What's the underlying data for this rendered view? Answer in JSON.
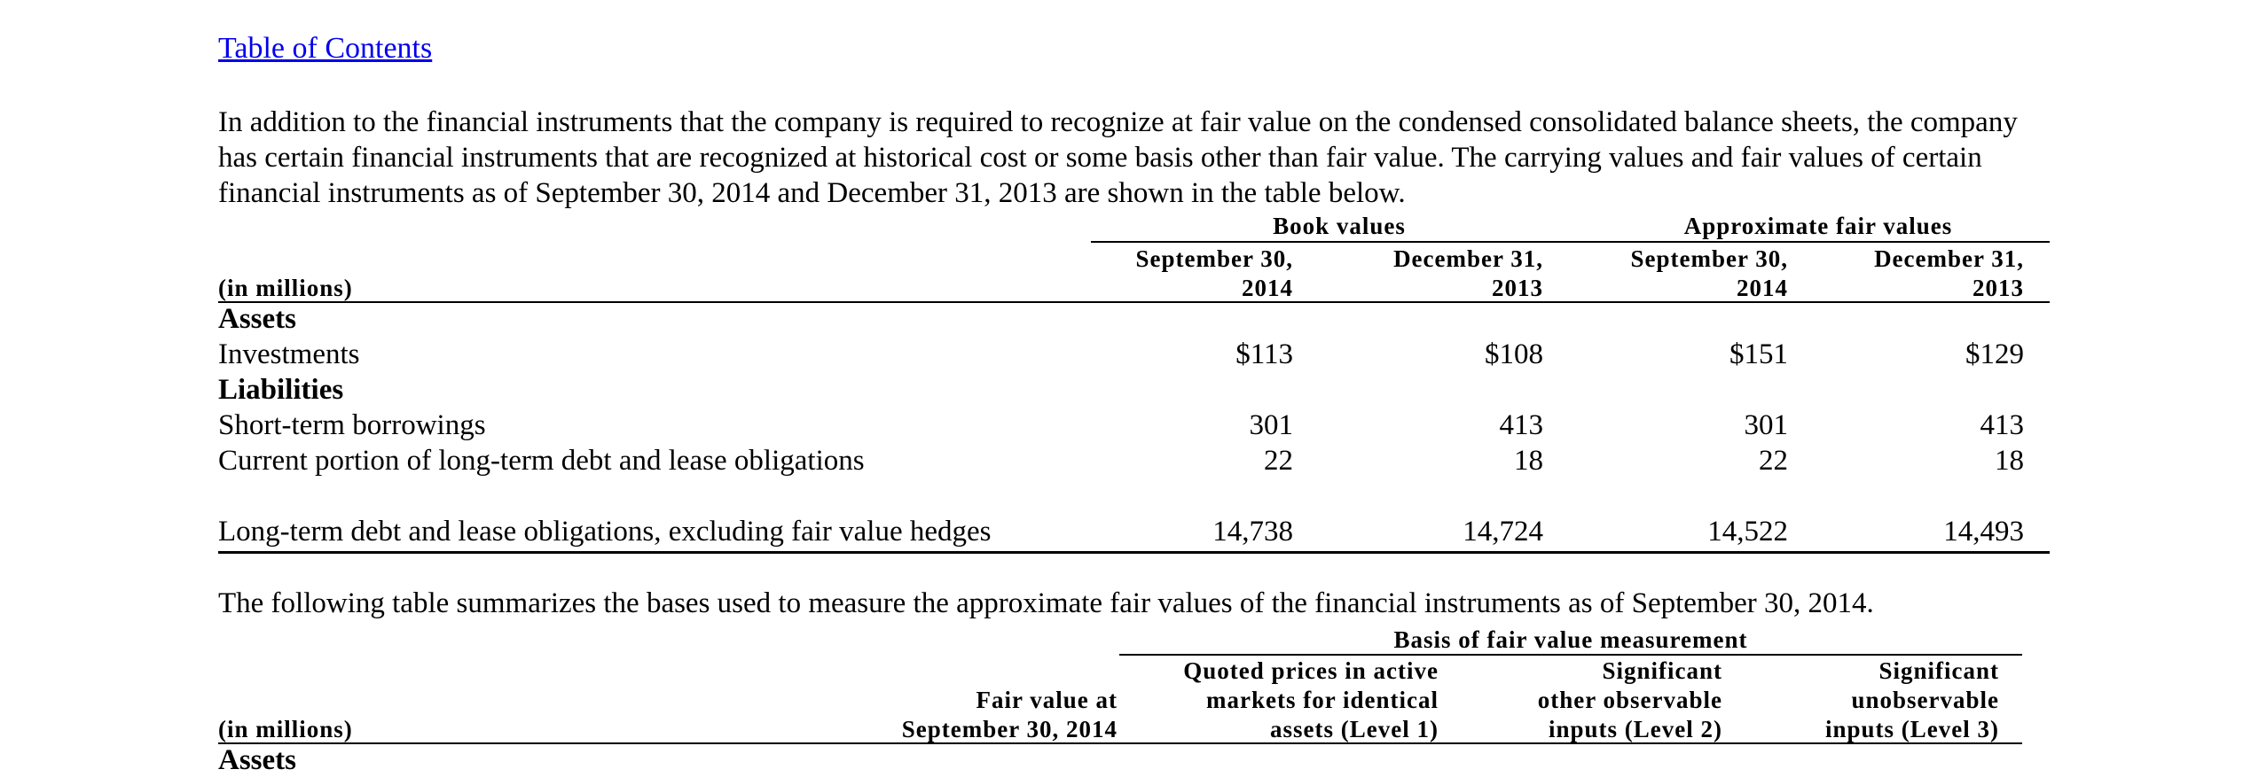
{
  "toc_link": "Table of Contents",
  "intro_lines": [
    "In addition to the financial instruments that the company is required to recognize at fair value on the condensed consolidated balance sheets, the company",
    "has certain financial instruments that are recognized at historical cost or some basis other than fair value. The carrying values and fair values of certain",
    "financial instruments as of September 30, 2014 and December 31, 2013 are shown in the table below."
  ],
  "table1": {
    "group_book": "Book values",
    "group_fair": "Approximate fair values",
    "units": "(in millions)",
    "columns": [
      {
        "line1": "September 30,",
        "line2": "2014"
      },
      {
        "line1": "December 31,",
        "line2": "2013"
      },
      {
        "line1": "September 30,",
        "line2": "2014"
      },
      {
        "line1": "December 31,",
        "line2": "2013"
      }
    ],
    "assets_label": "Assets",
    "liabilities_label": "Liabilities",
    "rows": [
      {
        "label": "Investments",
        "v": [
          "$113",
          "$108",
          "$151",
          "$129"
        ]
      },
      {
        "label": "Short-term borrowings",
        "v": [
          "301",
          "413",
          "301",
          "413"
        ]
      },
      {
        "label": "Current portion of long-term debt and lease obligations",
        "v": [
          "22",
          "18",
          "22",
          "18"
        ]
      },
      {
        "label": "Long-term debt and lease obligations, excluding fair value hedges",
        "v": [
          "14,738",
          "14,724",
          "14,522",
          "14,493"
        ]
      }
    ]
  },
  "second_para": "The following table summarizes the bases used to measure the approximate fair values of the financial instruments as of September 30, 2014.",
  "table2": {
    "group": "Basis of fair value measurement",
    "units": "(in millions)",
    "col_fair": [
      "Fair value at",
      "September 30, 2014"
    ],
    "col_level1": [
      "Quoted prices in active",
      "markets for identical",
      "assets (Level 1)"
    ],
    "col_level2": [
      "Significant",
      "other observable",
      "inputs (Level 2)"
    ],
    "col_level3": [
      "Significant",
      "unobservable",
      "inputs (Level 3)"
    ],
    "assets_label": "Assets"
  }
}
